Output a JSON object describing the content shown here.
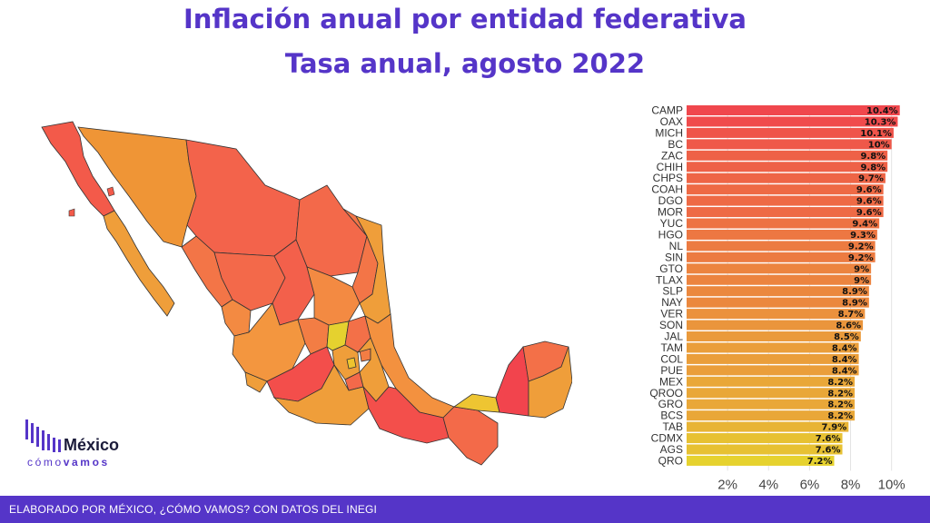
{
  "header": {
    "title": "Inflación anual por entidad federativa",
    "subtitle": "Tasa anual, agosto 2022"
  },
  "logo": {
    "brand": "México",
    "sub_light": "cómo",
    "sub_bold": "vamos",
    "bar_color": "#5535c8"
  },
  "footer": {
    "text": "ELABORADO POR MÉXICO, ¿CÓMO VAMOS? CON DATOS DEL INEGI"
  },
  "colors": {
    "accent": "#5535c8",
    "high": "#f0474d",
    "low": "#e6d22e"
  },
  "chart_data": {
    "type": "bar",
    "orientation": "horizontal",
    "categories": [
      "CAMP",
      "OAX",
      "MICH",
      "BC",
      "ZAC",
      "CHIH",
      "CHPS",
      "COAH",
      "DGO",
      "MOR",
      "YUC",
      "HGO",
      "NL",
      "SIN",
      "GTO",
      "TLAX",
      "SLP",
      "NAY",
      "VER",
      "SON",
      "JAL",
      "TAM",
      "COL",
      "PUE",
      "MEX",
      "QROO",
      "GRO",
      "BCS",
      "TAB",
      "CDMX",
      "AGS",
      "QRO"
    ],
    "values": [
      10.4,
      10.3,
      10.1,
      10,
      9.8,
      9.8,
      9.7,
      9.6,
      9.6,
      9.6,
      9.4,
      9.3,
      9.2,
      9.2,
      9,
      9,
      8.9,
      8.9,
      8.7,
      8.6,
      8.5,
      8.4,
      8.4,
      8.4,
      8.2,
      8.2,
      8.2,
      8.2,
      7.9,
      7.6,
      7.6,
      7.2
    ],
    "data_labels": [
      "10.4%",
      "10.3%",
      "10.1%",
      "10%",
      "9.8%",
      "9.8%",
      "9.7%",
      "9.6%",
      "9.6%",
      "9.6%",
      "9.4%",
      "9.3%",
      "9.2%",
      "9.2%",
      "9%",
      "9%",
      "8.9%",
      "8.9%",
      "8.7%",
      "8.6%",
      "8.5%",
      "8.4%",
      "8.4%",
      "8.4%",
      "8.2%",
      "8.2%",
      "8.2%",
      "8.2%",
      "7.9%",
      "7.6%",
      "7.6%",
      "7.2%"
    ],
    "xticks": [
      2,
      4,
      6,
      8,
      10
    ],
    "xtick_labels": [
      "2%",
      "4%",
      "6%",
      "8%",
      "10%"
    ],
    "xlim": [
      0,
      10.9
    ],
    "grid": true,
    "color_scale": [
      "#e6d22e",
      "#f0474d"
    ]
  }
}
